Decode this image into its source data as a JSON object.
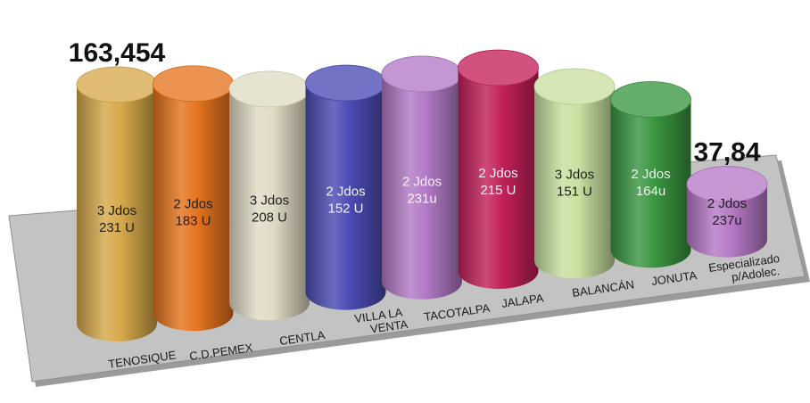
{
  "chart_data": {
    "type": "bar",
    "categories": [
      "TENOSIQUE",
      "C.D.PEMEX",
      "CENTLA",
      "VILLA LA VENTA",
      "TACOTALPA",
      "JALAPA",
      "BALANCÁN",
      "JONUTA",
      "Especializado p/Adolec."
    ],
    "category_lines": [
      [
        "TENOSIQUE"
      ],
      [
        "C.D.PEMEX"
      ],
      [
        "CENTLA"
      ],
      [
        "VILLA LA",
        "VENTA"
      ],
      [
        "TACOTALPA"
      ],
      [
        "JALAPA"
      ],
      [
        "BALANCÁN"
      ],
      [
        "JONUTA"
      ],
      [
        "Especializado",
        "p/Adolec."
      ]
    ],
    "values": [
      163.454,
      157,
      146,
      143,
      142,
      139,
      119,
      103,
      37.84
    ],
    "bar_labels": [
      [
        "3 Jdos",
        "231 U"
      ],
      [
        "2 Jdos",
        "183 U"
      ],
      [
        "3 Jdos",
        "208 U"
      ],
      [
        "2 Jdos",
        "152 U"
      ],
      [
        "2 Jdos",
        "231u"
      ],
      [
        "2 Jdos",
        "215 U"
      ],
      [
        "3 Jdos",
        "151 U"
      ],
      [
        "2 Jdos",
        "164u"
      ],
      [
        "2 Jdos",
        "237u"
      ]
    ],
    "value_labels": [
      {
        "index": 0,
        "text": "163,454"
      },
      {
        "index": 8,
        "text": "37,84"
      }
    ],
    "colors": [
      "#d6a94a",
      "#e5741e",
      "#e0dbc4",
      "#4b4bb4",
      "#b27ac6",
      "#c4215a",
      "#c8e0a0",
      "#3a9640",
      "#b77ac8"
    ],
    "label_colors": [
      "#1f1f1f",
      "#1f1f1f",
      "#1f1f1f",
      "#f2f2f2",
      "#f2f2f2",
      "#f2f2f2",
      "#1f1f1f",
      "#f2f2f2",
      "#1f1f1f"
    ],
    "platform_color": "#c3c3c3",
    "title": "",
    "xlabel": "",
    "ylabel": "",
    "legend": "none",
    "grid": false
  }
}
